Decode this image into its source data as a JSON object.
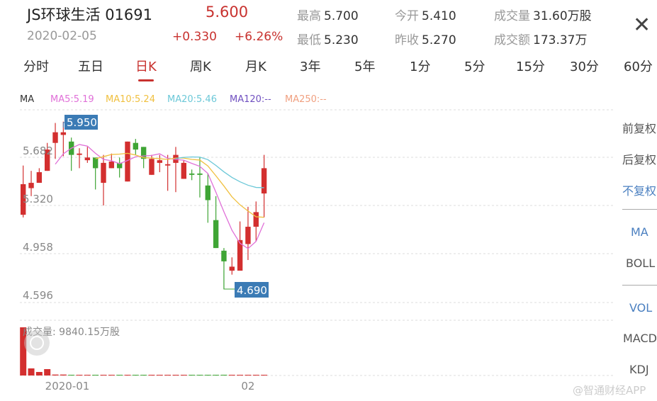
{
  "header": {
    "title": "JS环球生活 01691",
    "date": "2020-02-05",
    "price": "5.600",
    "change": "+0.330",
    "change_pct": "+6.26%",
    "stats": [
      {
        "k": "最高",
        "v": "5.700"
      },
      {
        "k": "今开",
        "v": "5.410"
      },
      {
        "k": "成交量",
        "v": "31.60万股"
      },
      {
        "k": "最低",
        "v": "5.230"
      },
      {
        "k": "昨收",
        "v": "5.270"
      },
      {
        "k": "成交额",
        "v": "173.37万"
      }
    ],
    "close_icon": "close-icon"
  },
  "tabs": [
    {
      "label": "分时"
    },
    {
      "label": "五日"
    },
    {
      "label": "日K",
      "active": true
    },
    {
      "label": "周K"
    },
    {
      "label": "月K"
    },
    {
      "label": "3年"
    },
    {
      "label": "5年"
    },
    {
      "label": "1分"
    },
    {
      "label": "5分"
    },
    {
      "label": "15分"
    },
    {
      "label": "30分"
    },
    {
      "label": "60分"
    }
  ],
  "ma_legend": [
    {
      "label": "MA",
      "color": "#333333"
    },
    {
      "label": "MA5:5.19",
      "color": "#e070d8"
    },
    {
      "label": "MA10:5.24",
      "color": "#f0c040"
    },
    {
      "label": "MA20:5.46",
      "color": "#6cc8d8"
    },
    {
      "label": "MA120:--",
      "color": "#7050c0"
    },
    {
      "label": "MA250:--",
      "color": "#f0a080"
    }
  ],
  "side_panel": {
    "adjust": [
      {
        "label": "前复权"
      },
      {
        "label": "后复权"
      },
      {
        "label": "不复权",
        "active": true
      }
    ],
    "main_ind": [
      {
        "label": "MA",
        "active": true
      },
      {
        "label": "BOLL"
      }
    ],
    "sub_ind": [
      {
        "label": "VOL",
        "active": true
      },
      {
        "label": "MACD"
      },
      {
        "label": "KDJ"
      }
    ]
  },
  "watermark": "@智通财经APP",
  "colors": {
    "up": "#d32f2f",
    "down": "#3fa535",
    "label_bg": "#3b7bb5",
    "accent": "#c8322f",
    "active_blue": "#4a7fc0"
  },
  "chart_data": {
    "type": "candlestick",
    "y_ticks": [
      "5.682",
      "5.320",
      "4.958",
      "4.596"
    ],
    "y_tick_values": [
      5.682,
      5.32,
      4.958,
      4.596
    ],
    "x_ticks": [
      {
        "label": "2020-01",
        "index": 5.5
      },
      {
        "label": "02",
        "index": 28
      }
    ],
    "max_label": "5.950",
    "min_label": "4.690",
    "volume_label": "成交量: 9840.15万股",
    "grid": true,
    "candles": [
      [
        5.25,
        5.48,
        5.62,
        5.23
      ],
      [
        5.45,
        5.49,
        5.58,
        5.39
      ],
      [
        5.49,
        5.57,
        5.6,
        5.49
      ],
      [
        5.58,
        5.74,
        5.79,
        5.58
      ],
      [
        5.79,
        5.87,
        5.94,
        5.67
      ],
      [
        5.85,
        5.87,
        5.95,
        5.69
      ],
      [
        5.8,
        5.7,
        5.83,
        5.58
      ],
      [
        5.7,
        5.71,
        5.75,
        5.6
      ],
      [
        5.66,
        5.68,
        5.76,
        5.64
      ],
      [
        5.68,
        5.6,
        5.68,
        5.44
      ],
      [
        5.49,
        5.64,
        5.7,
        5.32
      ],
      [
        5.6,
        5.65,
        5.71,
        5.6
      ],
      [
        5.64,
        5.6,
        5.68,
        5.53
      ],
      [
        5.5,
        5.8,
        5.8,
        5.5
      ],
      [
        5.79,
        5.74,
        5.82,
        5.7
      ],
      [
        5.76,
        5.67,
        5.76,
        5.6
      ],
      [
        5.55,
        5.67,
        5.7,
        5.55
      ],
      [
        5.64,
        5.66,
        5.7,
        5.57
      ],
      [
        5.62,
        5.63,
        5.7,
        5.43
      ],
      [
        5.64,
        5.7,
        5.76,
        5.42
      ],
      [
        5.52,
        5.64,
        5.66,
        5.52
      ],
      [
        5.56,
        5.55,
        5.59,
        5.51
      ],
      [
        5.56,
        5.55,
        5.68,
        5.38
      ],
      [
        5.47,
        5.36,
        5.56,
        5.19
      ],
      [
        5.21,
        5.0,
        5.39,
        5.0
      ],
      [
        4.98,
        4.9,
        5.0,
        4.69
      ],
      [
        4.83,
        4.86,
        4.93,
        4.8
      ],
      [
        4.83,
        5.06,
        5.2,
        4.83
      ],
      [
        5.03,
        5.16,
        5.31,
        4.91
      ],
      [
        5.16,
        5.27,
        5.35,
        5.05
      ],
      [
        5.41,
        5.6,
        5.7,
        5.23
      ]
    ],
    "candle_fields": [
      "open",
      "close",
      "high",
      "low"
    ],
    "volume": [
      9840,
      1450,
      720,
      1300,
      190,
      190,
      120,
      80,
      80,
      120,
      120,
      60,
      60,
      80,
      80,
      60,
      80,
      60,
      60,
      80,
      60,
      120,
      120,
      120,
      120,
      150,
      80,
      120,
      80,
      120,
      90
    ]
  }
}
